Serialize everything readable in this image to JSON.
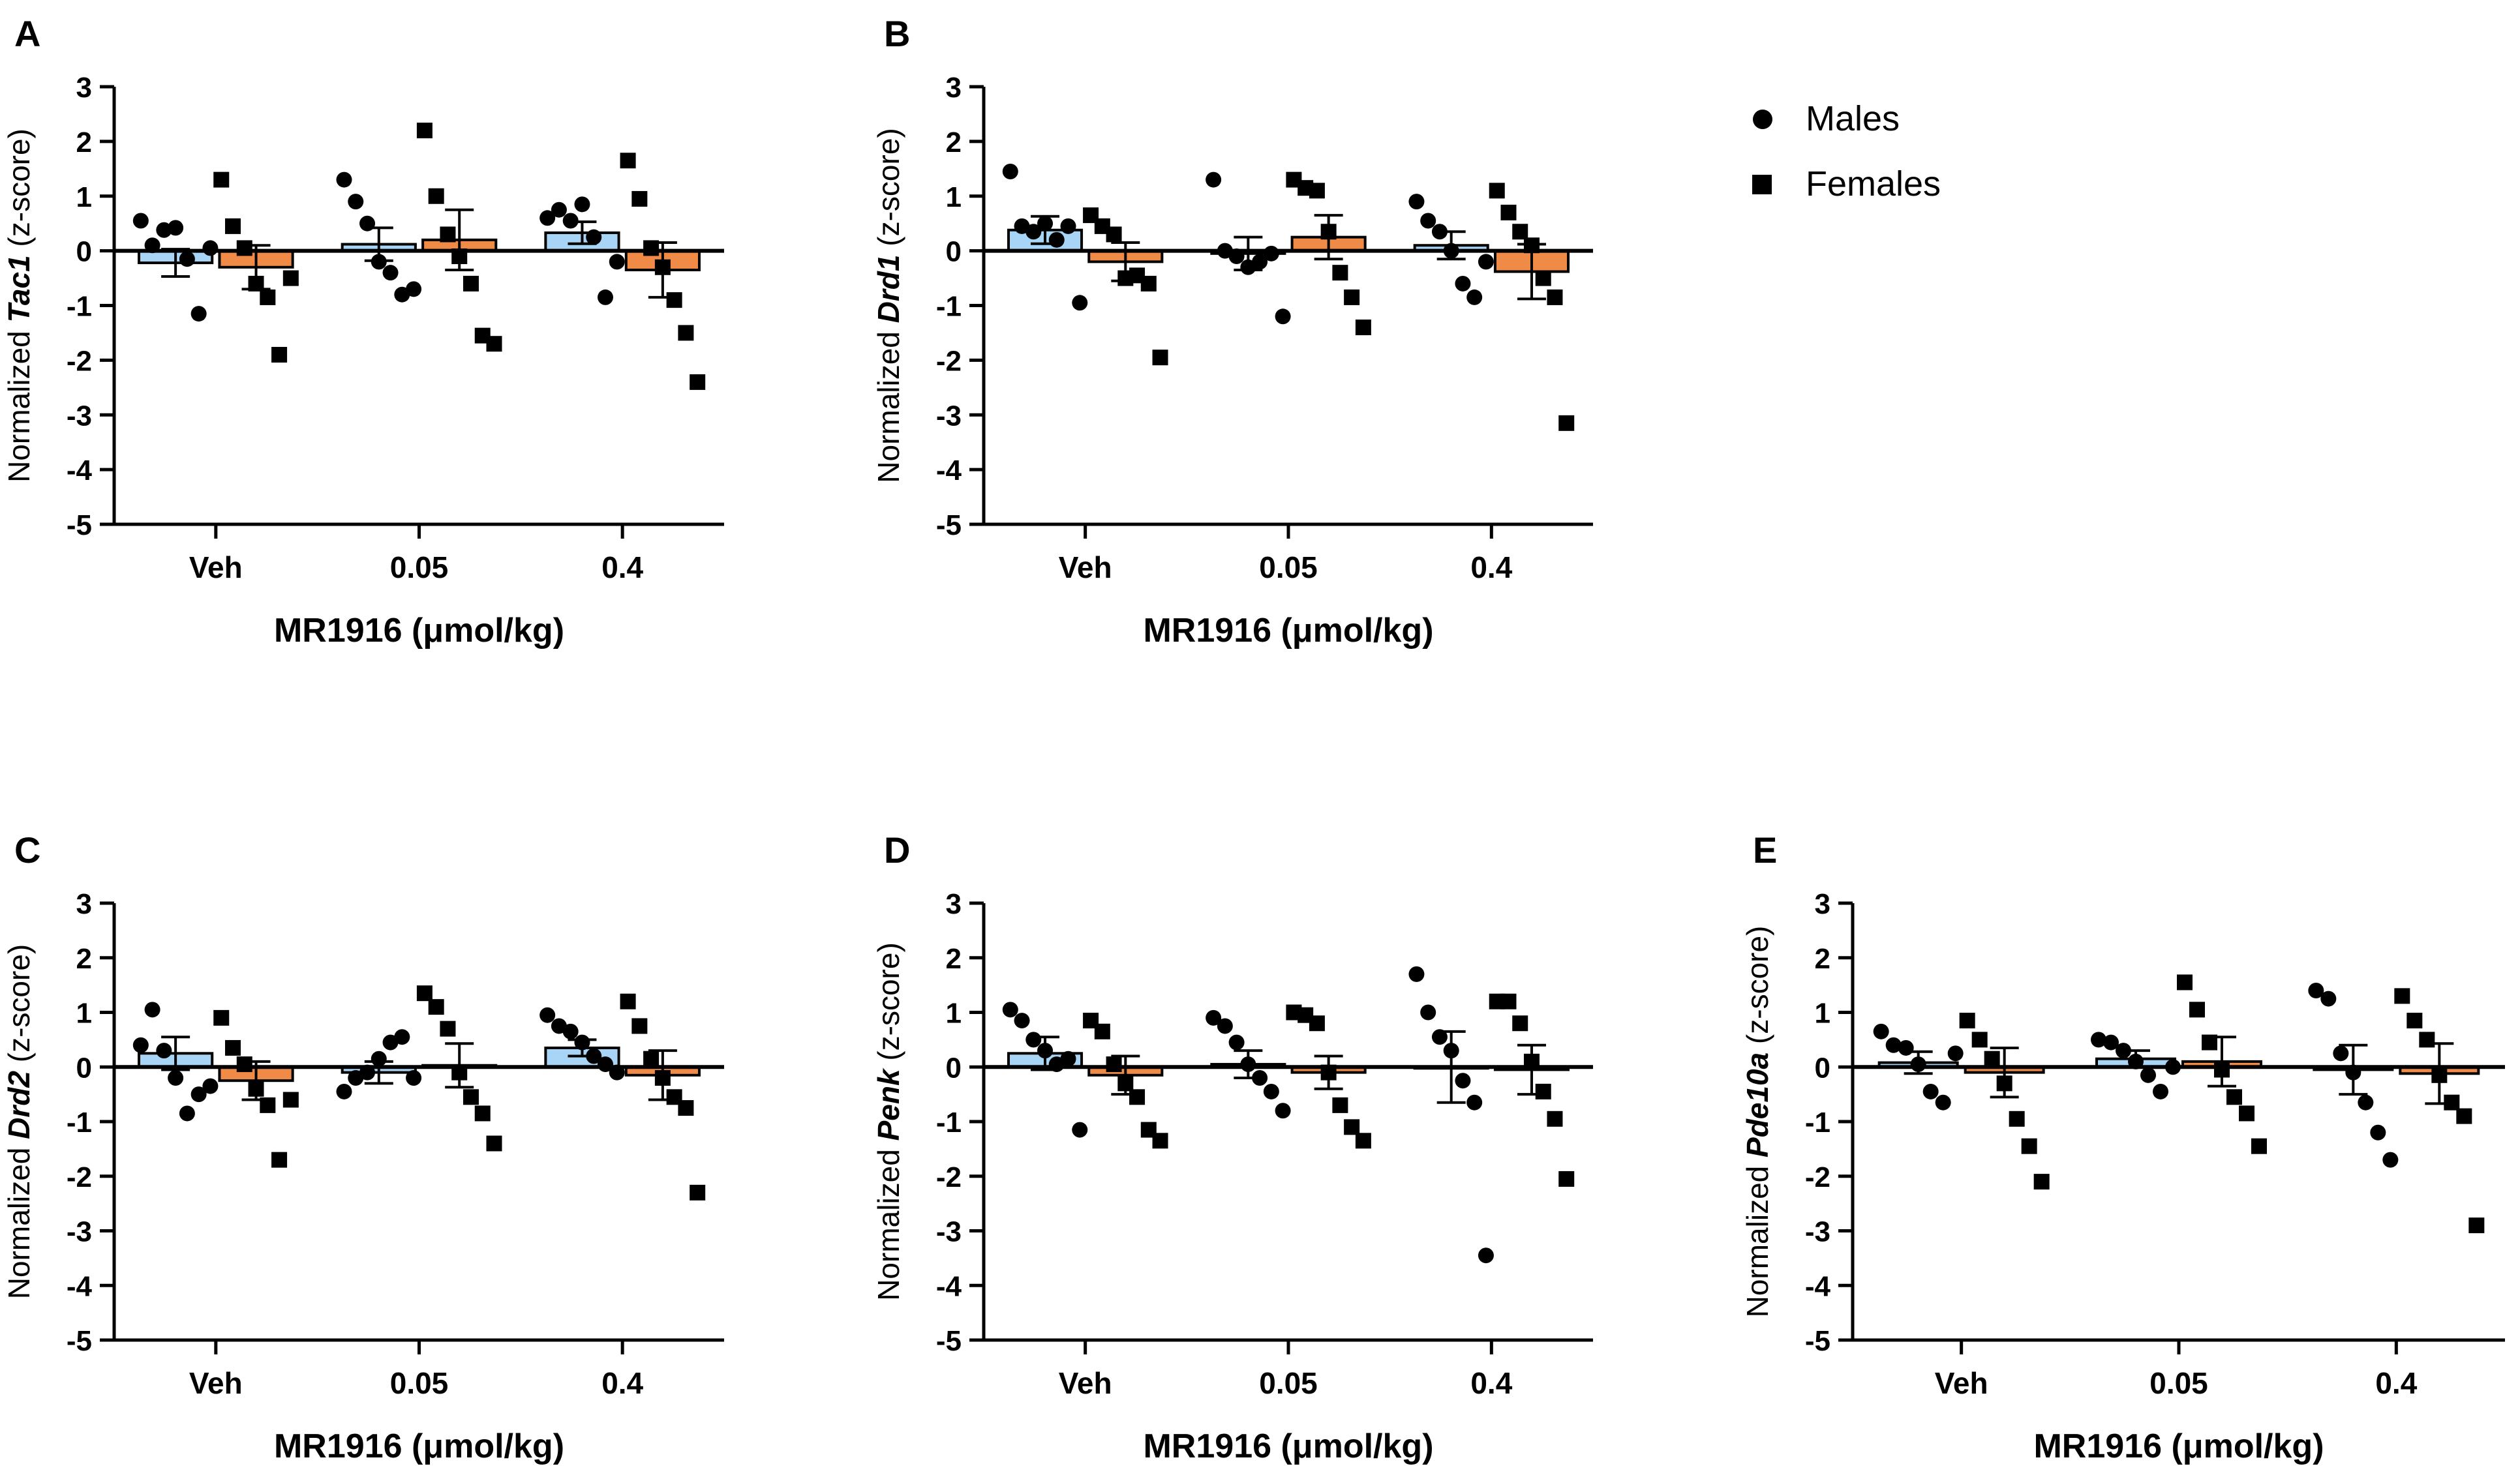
{
  "figure": {
    "legend": {
      "position": "top-right",
      "entries": [
        {
          "label": "Males",
          "marker": "circle"
        },
        {
          "label": "Females",
          "marker": "square"
        }
      ]
    },
    "colors": {
      "males_bar": "#a8d4f5",
      "females_bar": "#f08a47",
      "axis": "#000000",
      "points": "#000000"
    }
  },
  "chart_data": [
    {
      "panel": "A",
      "type": "bar",
      "gene": "Tac1",
      "ylabel_prefix": "Normalized ",
      "ylabel_suffix": " (z-score)",
      "xlabel": "MR1916 (μmol/kg)",
      "categories": [
        "Veh",
        "0.05",
        "0.4"
      ],
      "ylim": [
        -5,
        3
      ],
      "yticks": [
        "-5",
        "-4",
        "-3",
        "-2",
        "-1",
        "0",
        "1",
        "2",
        "3"
      ],
      "series": [
        {
          "name": "Males",
          "means": [
            -0.22,
            0.12,
            0.33
          ],
          "sem": [
            0.25,
            0.3,
            0.2
          ],
          "points": [
            [
              0.55,
              0.1,
              0.38,
              0.42,
              -0.15,
              -1.15,
              0.05
            ],
            [
              1.3,
              0.9,
              0.5,
              -0.2,
              -0.4,
              -0.8,
              -0.7
            ],
            [
              0.6,
              0.75,
              0.55,
              0.85,
              0.25,
              -0.85,
              -0.2
            ]
          ]
        },
        {
          "name": "Females",
          "means": [
            -0.3,
            0.2,
            -0.35
          ],
          "sem": [
            0.4,
            0.55,
            0.5
          ],
          "points": [
            [
              1.3,
              0.45,
              0.05,
              -0.6,
              -0.85,
              -1.9,
              -0.5
            ],
            [
              2.2,
              1.0,
              0.3,
              -0.1,
              -0.6,
              -1.55,
              -1.7
            ],
            [
              1.65,
              0.95,
              0.05,
              -0.3,
              -0.9,
              -1.5,
              -2.4
            ]
          ]
        }
      ]
    },
    {
      "panel": "B",
      "type": "bar",
      "gene": "Drd1",
      "ylabel_prefix": "Normalized ",
      "ylabel_suffix": " (z-score)",
      "xlabel": "MR1916 (μmol/kg)",
      "categories": [
        "Veh",
        "0.05",
        "0.4"
      ],
      "ylim": [
        -5,
        3
      ],
      "yticks": [
        "-5",
        "-4",
        "-3",
        "-2",
        "-1",
        "0",
        "1",
        "2",
        "3"
      ],
      "series": [
        {
          "name": "Males",
          "means": [
            0.38,
            -0.05,
            0.1
          ],
          "sem": [
            0.25,
            0.3,
            0.25
          ],
          "points": [
            [
              1.45,
              0.45,
              0.35,
              0.5,
              0.2,
              0.45,
              -0.95
            ],
            [
              1.3,
              0.0,
              -0.1,
              -0.3,
              -0.2,
              -0.05,
              -1.2
            ],
            [
              0.9,
              0.55,
              0.35,
              0.0,
              -0.6,
              -0.85,
              -0.2
            ]
          ]
        },
        {
          "name": "Females",
          "means": [
            -0.2,
            0.25,
            -0.38
          ],
          "sem": [
            0.35,
            0.4,
            0.5
          ],
          "points": [
            [
              0.65,
              0.45,
              0.3,
              -0.5,
              -0.45,
              -0.6,
              -1.95
            ],
            [
              1.3,
              1.15,
              1.1,
              0.35,
              -0.4,
              -0.85,
              -1.4
            ],
            [
              1.1,
              0.7,
              0.35,
              0.1,
              -0.5,
              -0.85,
              -3.15
            ]
          ]
        }
      ]
    },
    {
      "panel": "C",
      "type": "bar",
      "gene": "Drd2",
      "ylabel_prefix": "Normalized ",
      "ylabel_suffix": " (z-score)",
      "xlabel": "MR1916 (μmol/kg)",
      "categories": [
        "Veh",
        "0.05",
        "0.4"
      ],
      "ylim": [
        -5,
        3
      ],
      "yticks": [
        "-5",
        "-4",
        "-3",
        "-2",
        "-1",
        "0",
        "1",
        "2",
        "3"
      ],
      "series": [
        {
          "name": "Males",
          "means": [
            0.25,
            -0.1,
            0.35
          ],
          "sem": [
            0.3,
            0.2,
            0.15
          ],
          "points": [
            [
              0.4,
              1.05,
              0.3,
              -0.2,
              -0.85,
              -0.5,
              -0.35
            ],
            [
              -0.45,
              -0.2,
              -0.1,
              0.15,
              0.45,
              0.55,
              -0.2
            ],
            [
              0.95,
              0.75,
              0.65,
              0.45,
              0.2,
              0.05,
              -0.1
            ]
          ]
        },
        {
          "name": "Females",
          "means": [
            -0.25,
            0.03,
            -0.15
          ],
          "sem": [
            0.35,
            0.4,
            0.45
          ],
          "points": [
            [
              0.9,
              0.35,
              0.05,
              -0.4,
              -0.7,
              -1.7,
              -0.6
            ],
            [
              1.35,
              1.1,
              0.7,
              -0.1,
              -0.55,
              -0.85,
              -1.4
            ],
            [
              1.2,
              0.75,
              0.15,
              -0.2,
              -0.55,
              -0.75,
              -2.3
            ]
          ]
        }
      ]
    },
    {
      "panel": "D",
      "type": "bar",
      "gene": "Penk",
      "ylabel_prefix": "Normalized ",
      "ylabel_suffix": " (z-score)",
      "xlabel": "MR1916 (μmol/kg)",
      "categories": [
        "Veh",
        "0.05",
        "0.4"
      ],
      "ylim": [
        -5,
        3
      ],
      "yticks": [
        "-5",
        "-4",
        "-3",
        "-2",
        "-1",
        "0",
        "1",
        "2",
        "3"
      ],
      "series": [
        {
          "name": "Males",
          "means": [
            0.25,
            0.05,
            0.0
          ],
          "sem": [
            0.3,
            0.25,
            0.65
          ],
          "points": [
            [
              1.05,
              0.85,
              0.5,
              0.3,
              0.05,
              0.15,
              -1.15
            ],
            [
              0.9,
              0.75,
              0.45,
              0.05,
              -0.2,
              -0.45,
              -0.8
            ],
            [
              1.7,
              1.0,
              0.55,
              0.3,
              -0.25,
              -0.65,
              -3.45
            ]
          ]
        },
        {
          "name": "Females",
          "means": [
            -0.15,
            -0.1,
            -0.05
          ],
          "sem": [
            0.35,
            0.3,
            0.45
          ],
          "points": [
            [
              0.85,
              0.65,
              0.05,
              -0.3,
              -0.55,
              -1.15,
              -1.35
            ],
            [
              1.0,
              0.95,
              0.8,
              -0.1,
              -0.7,
              -1.1,
              -1.35
            ],
            [
              1.2,
              1.2,
              0.8,
              0.1,
              -0.45,
              -0.95,
              -2.05
            ]
          ]
        }
      ]
    },
    {
      "panel": "E",
      "type": "bar",
      "gene": "Pde10a",
      "ylabel_prefix": "Normalized ",
      "ylabel_suffix": " (z-score)",
      "xlabel": "MR1916 (μmol/kg)",
      "categories": [
        "Veh",
        "0.05",
        "0.4"
      ],
      "ylim": [
        -5,
        3
      ],
      "yticks": [
        "-5",
        "-4",
        "-3",
        "-2",
        "-1",
        "0",
        "1",
        "2",
        "3"
      ],
      "series": [
        {
          "name": "Males",
          "means": [
            0.08,
            0.15,
            -0.05
          ],
          "sem": [
            0.2,
            0.15,
            0.45
          ],
          "points": [
            [
              0.65,
              0.4,
              0.35,
              0.05,
              -0.45,
              -0.65,
              0.25
            ],
            [
              0.5,
              0.45,
              0.3,
              0.1,
              -0.15,
              -0.45,
              0.0
            ],
            [
              1.4,
              1.25,
              0.25,
              -0.1,
              -0.65,
              -1.2,
              -1.7
            ]
          ]
        },
        {
          "name": "Females",
          "means": [
            -0.1,
            0.1,
            -0.12
          ],
          "sem": [
            0.45,
            0.45,
            0.55
          ],
          "points": [
            [
              0.85,
              0.5,
              0.15,
              -0.3,
              -0.95,
              -1.45,
              -2.1
            ],
            [
              1.55,
              1.05,
              0.45,
              -0.05,
              -0.55,
              -0.85,
              -1.45
            ],
            [
              1.3,
              0.85,
              0.5,
              -0.15,
              -0.65,
              -0.9,
              -2.9
            ]
          ]
        }
      ]
    }
  ]
}
